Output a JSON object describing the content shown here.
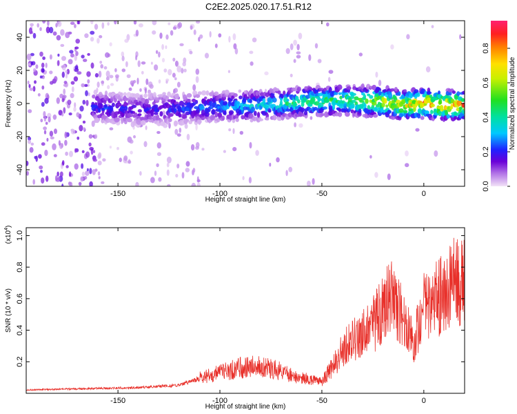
{
  "title": "C2E2.2025.020.17.51.R12",
  "chart_data": [
    {
      "type": "heatmap",
      "xlabel": "Height of straight line (km)",
      "ylabel": "Frequency (Hz)",
      "xlim": [
        -195,
        20
      ],
      "ylim": [
        -50,
        50
      ],
      "x_ticks": [
        -150,
        -100,
        -50,
        0
      ],
      "y_ticks": [
        -40,
        -20,
        0,
        20,
        40
      ],
      "colorbar": {
        "label": "Normalized spectral amplitude",
        "range": [
          0,
          0.96
        ],
        "ticks": [
          "0.0",
          "0.2",
          "0.4",
          "0.6",
          "0.8"
        ],
        "tick_values": [
          0,
          0.2,
          0.4,
          0.6,
          0.8
        ]
      },
      "ridge": {
        "x": [
          -160,
          -140,
          -120,
          -100,
          -80,
          -60,
          -40,
          -20,
          -10,
          0,
          10,
          20
        ],
        "y": [
          -2,
          -4,
          -3,
          -2,
          -1,
          1,
          2,
          1,
          -1,
          0,
          -1,
          -1
        ],
        "peak_amplitude": [
          0.25,
          0.2,
          0.25,
          0.3,
          0.4,
          0.5,
          0.55,
          0.7,
          0.75,
          0.85,
          0.9,
          0.85
        ]
      }
    },
    {
      "type": "line",
      "xlabel": "Height of straight line (km)",
      "ylabel": "SNR (10 * v/v)",
      "y_multiplier": "(x10",
      "y_multiplier_exp": "4",
      "y_multiplier_close": ")",
      "xlim": [
        -195,
        20
      ],
      "ylim": [
        0,
        10500
      ],
      "x_ticks": [
        -150,
        -100,
        -50,
        0
      ],
      "y_ticks": [
        2000,
        4000,
        6000,
        8000,
        10000
      ],
      "y_tick_labels": [
        "0.2",
        "0.4",
        "0.6",
        "0.8",
        "1.0"
      ],
      "series": [
        {
          "color": "#e8302a",
          "x": [
            -195,
            -180,
            -160,
            -140,
            -120,
            -110,
            -100,
            -90,
            -80,
            -70,
            -60,
            -50,
            -45,
            -40,
            -35,
            -30,
            -25,
            -20,
            -15,
            -10,
            -5,
            0,
            5,
            10,
            15,
            20
          ],
          "y": [
            200,
            250,
            300,
            350,
            500,
            900,
            1200,
            1500,
            1600,
            1300,
            900,
            700,
            1500,
            2500,
            3200,
            3500,
            4000,
            5000,
            6000,
            4200,
            3000,
            5000,
            5500,
            6000,
            6500,
            6800
          ]
        }
      ]
    }
  ]
}
